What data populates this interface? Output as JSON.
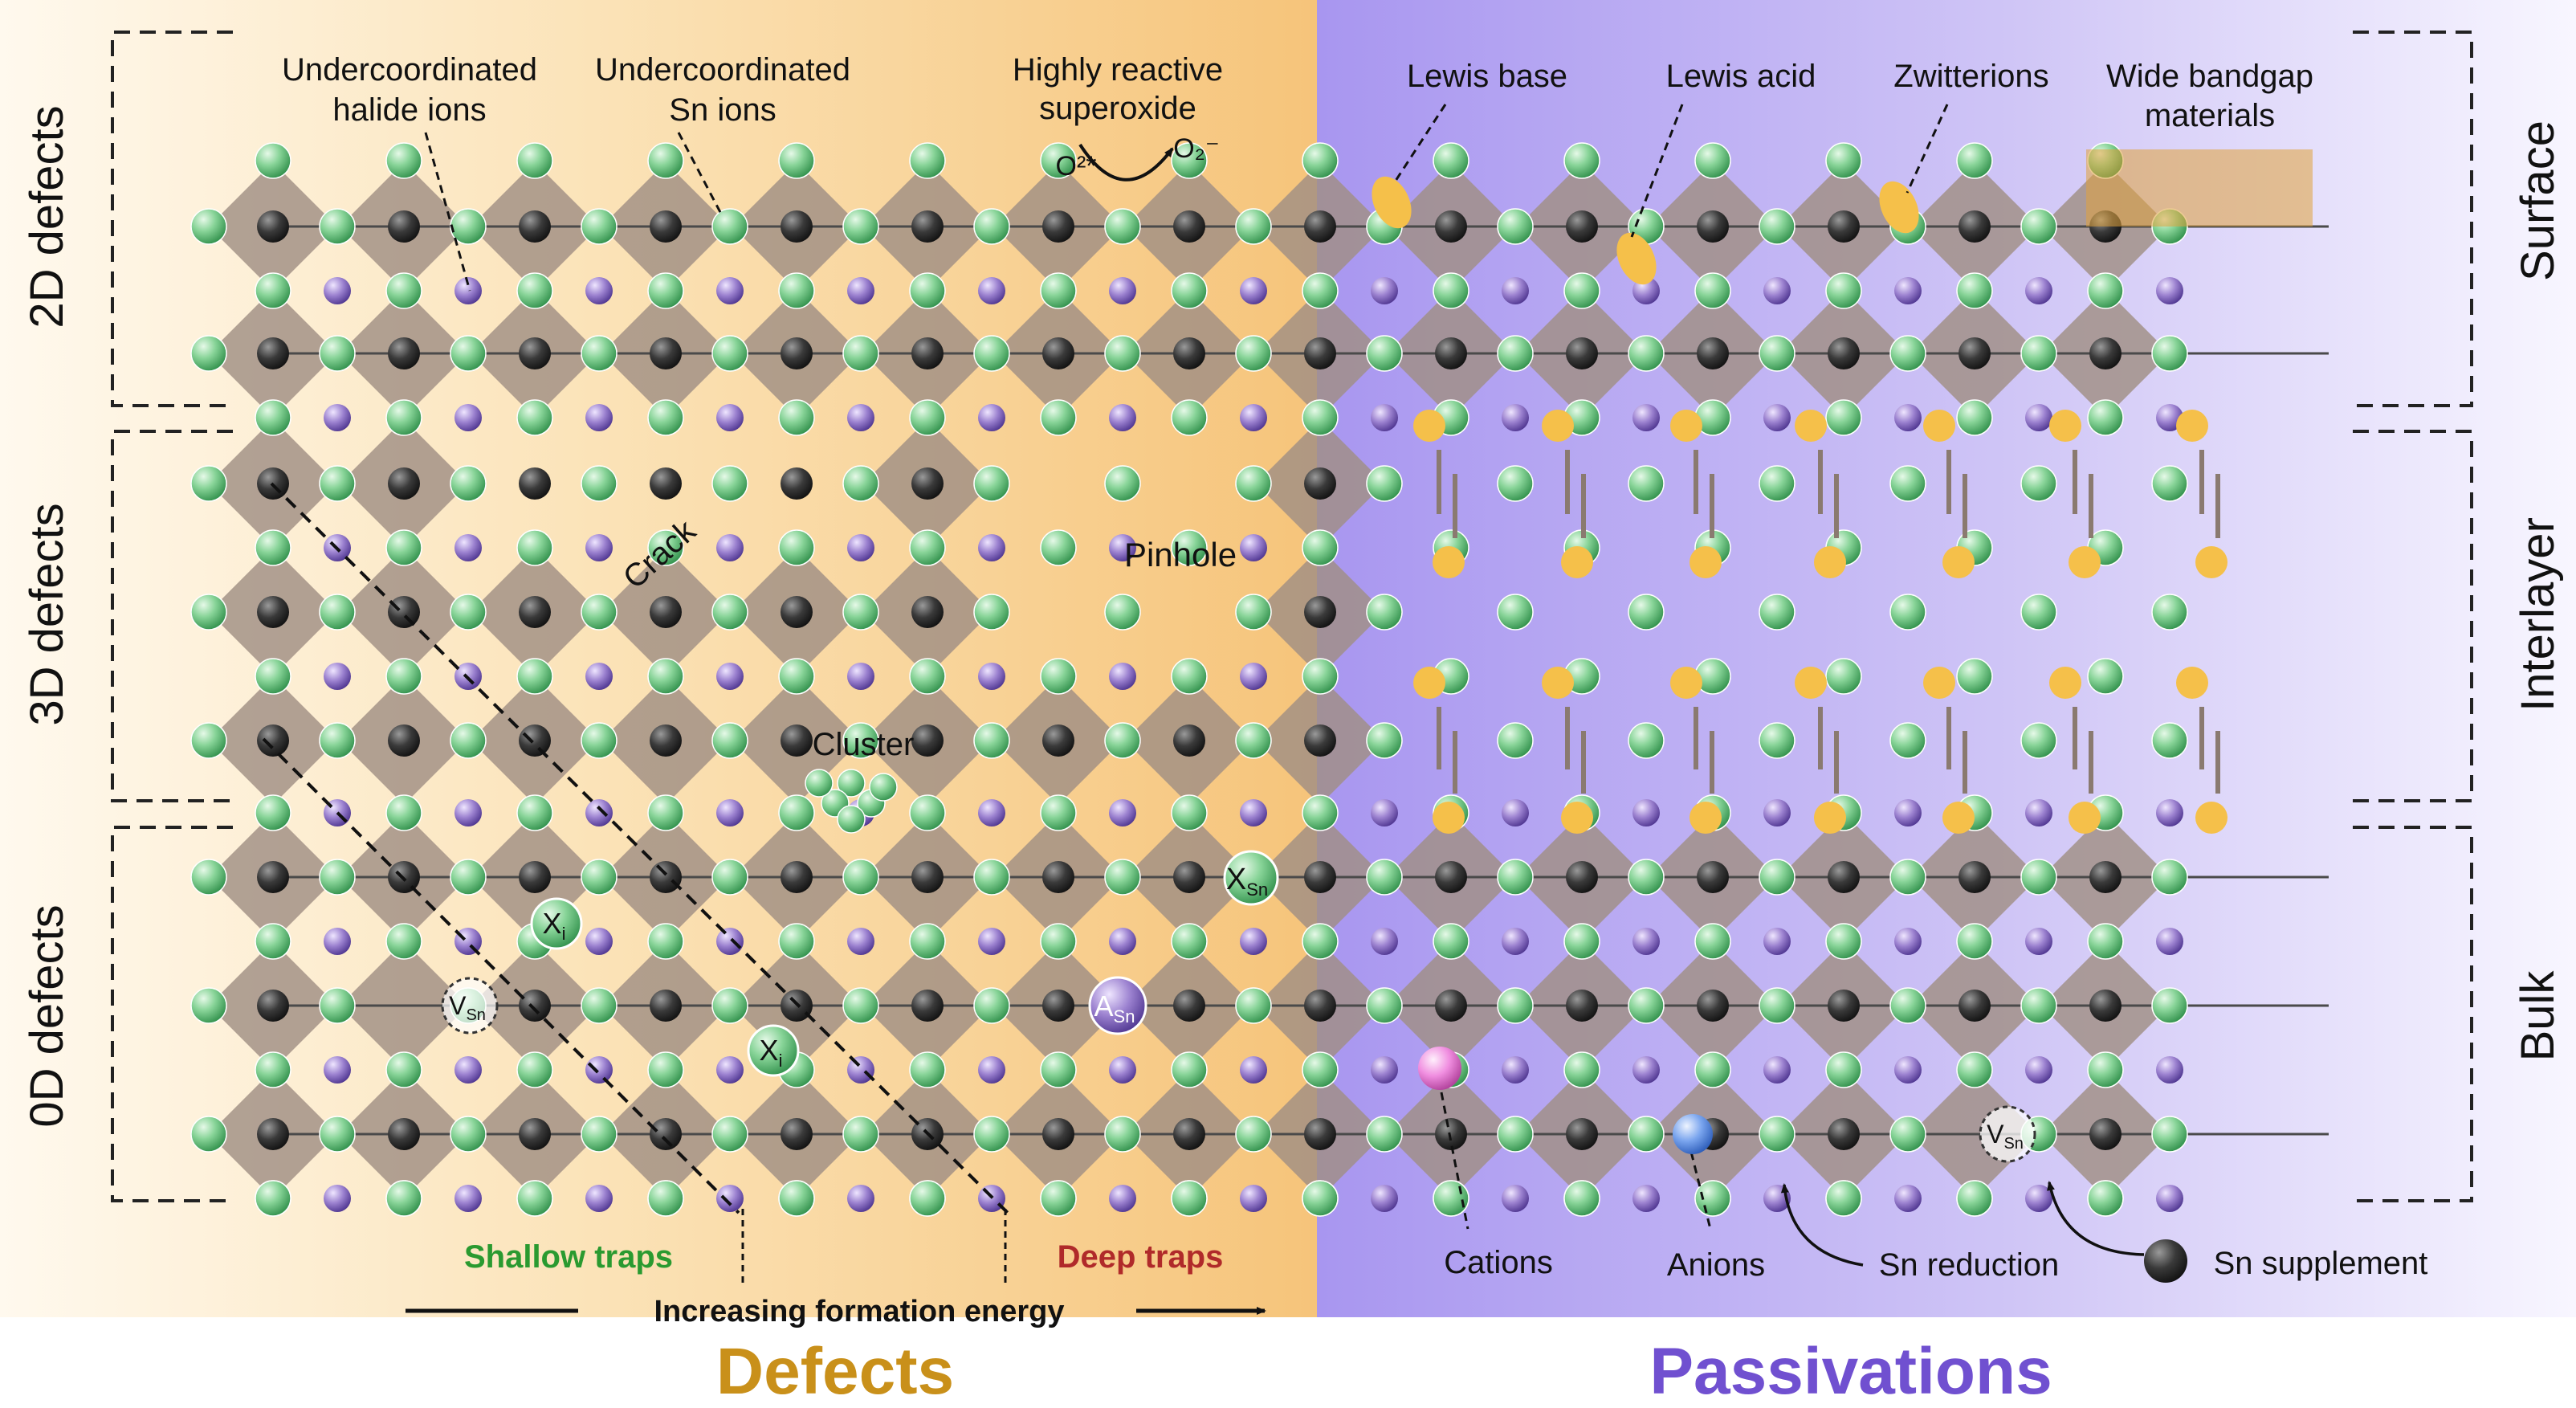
{
  "colors": {
    "halide": "#7fcf8e",
    "halide_dark": "#2f8f4a",
    "tin": "#3a3a3a",
    "cation_a": "#8a70c0",
    "octahedron": "#a8968a",
    "ligand": "#f5c04a",
    "defects_title": "#c9901a",
    "passivations_title": "#7050d0",
    "shallow": "#2a9a30",
    "deep": "#b02a2a",
    "pink_cation": "#ee88dd",
    "blue_anion": "#6f9de8"
  },
  "left_labels": {
    "d2": "2D defects",
    "d3": "3D defects",
    "d0": "0D defects"
  },
  "right_labels": {
    "surface": "Surface",
    "interlayer": "Interlayer",
    "bulk": "Bulk"
  },
  "defects": {
    "undercoord_halide_l1": "Undercoordinated",
    "undercoord_halide_l2": "halide ions",
    "undercoord_sn_l1": "Undercoordinated",
    "undercoord_sn_l2": "Sn ions",
    "superoxide_l1": "Highly reactive",
    "superoxide_l2": "superoxide",
    "o2_star": "O²*",
    "o2_minus": "O₂⁻",
    "crack": "Crack",
    "pinhole": "Pinhole",
    "cluster": "Cluster",
    "x_sn": "X",
    "x_sn_sub": "Sn",
    "x_i": "X",
    "x_i_sub": "i",
    "a_sn": "A",
    "a_sn_sub": "Sn",
    "v_sn": "V",
    "v_sn_sub": "Sn",
    "shallow_traps": "Shallow traps",
    "deep_traps": "Deep traps",
    "increasing_energy": "Increasing formation energy"
  },
  "passivations": {
    "lewis_base": "Lewis base",
    "lewis_acid": "Lewis acid",
    "zwitterions": "Zwitterions",
    "wide_bandgap_l1": "Wide bandgap",
    "wide_bandgap_l2": "materials",
    "cations": "Cations",
    "anions": "Anions",
    "sn_reduction": "Sn reduction",
    "sn_supplement": "Sn supplement"
  },
  "titles": {
    "defects": "Defects",
    "passivations": "Passivations"
  }
}
